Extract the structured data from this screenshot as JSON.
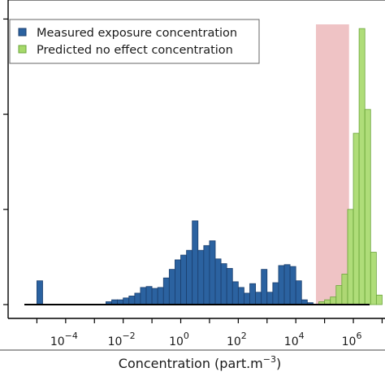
{
  "chart_data": {
    "type": "bar",
    "x_scale": "log10",
    "xlabel_main": "Concentration (part.m",
    "xlabel_sup": "−3",
    "xlabel_tail": ")",
    "x_ticks": [
      {
        "base": "10",
        "exp": "−4",
        "value": -4
      },
      {
        "base": "10",
        "exp": "−2",
        "value": -2
      },
      {
        "base": "10",
        "exp": "0",
        "value": 0
      },
      {
        "base": "10",
        "exp": "2",
        "value": 2
      },
      {
        "base": "10",
        "exp": "4",
        "value": 4
      },
      {
        "base": "10",
        "exp": "6",
        "value": 6
      }
    ],
    "xlim_log10": [
      -6.0,
      7.1
    ],
    "ylim": [
      0,
      320
    ],
    "y_tick_values": [
      0,
      100,
      200,
      300
    ],
    "bin_width_log10": 0.2,
    "grid": false,
    "legend_position": "top-left",
    "shaded_region_log10": [
      4.7,
      5.85
    ],
    "colors": {
      "measured_fill": "#2b62a0",
      "measured_edge": "#1b3f6e",
      "pnec_fill": "#a6d96a",
      "pnec_edge": "#6aa53a",
      "shade": "#efc3c5",
      "axis": "#000000"
    },
    "series": [
      {
        "name": "Measured exposure concentration",
        "color": "#2b62a0",
        "bins": [
          {
            "x": -5.0,
            "y": 25
          },
          {
            "x": -2.6,
            "y": 3
          },
          {
            "x": -2.4,
            "y": 5
          },
          {
            "x": -2.2,
            "y": 5
          },
          {
            "x": -2.0,
            "y": 7
          },
          {
            "x": -1.8,
            "y": 9
          },
          {
            "x": -1.6,
            "y": 12
          },
          {
            "x": -1.4,
            "y": 18
          },
          {
            "x": -1.2,
            "y": 19
          },
          {
            "x": -1.0,
            "y": 17
          },
          {
            "x": -0.8,
            "y": 18
          },
          {
            "x": -0.6,
            "y": 28
          },
          {
            "x": -0.4,
            "y": 37
          },
          {
            "x": -0.2,
            "y": 47
          },
          {
            "x": 0.0,
            "y": 52
          },
          {
            "x": 0.2,
            "y": 57
          },
          {
            "x": 0.4,
            "y": 88
          },
          {
            "x": 0.6,
            "y": 57
          },
          {
            "x": 0.8,
            "y": 62
          },
          {
            "x": 1.0,
            "y": 67
          },
          {
            "x": 1.2,
            "y": 48
          },
          {
            "x": 1.4,
            "y": 43
          },
          {
            "x": 1.6,
            "y": 38
          },
          {
            "x": 1.8,
            "y": 24
          },
          {
            "x": 2.0,
            "y": 18
          },
          {
            "x": 2.2,
            "y": 12
          },
          {
            "x": 2.4,
            "y": 22
          },
          {
            "x": 2.6,
            "y": 13
          },
          {
            "x": 2.8,
            "y": 37
          },
          {
            "x": 3.0,
            "y": 13
          },
          {
            "x": 3.2,
            "y": 23
          },
          {
            "x": 3.4,
            "y": 41
          },
          {
            "x": 3.6,
            "y": 42
          },
          {
            "x": 3.8,
            "y": 40
          },
          {
            "x": 4.0,
            "y": 25
          },
          {
            "x": 4.2,
            "y": 5
          },
          {
            "x": 4.4,
            "y": 2
          }
        ]
      },
      {
        "name": "Predicted no effect concentration",
        "color": "#a6d96a",
        "bins": [
          {
            "x": 4.8,
            "y": 3
          },
          {
            "x": 5.0,
            "y": 5
          },
          {
            "x": 5.2,
            "y": 8
          },
          {
            "x": 5.4,
            "y": 20
          },
          {
            "x": 5.6,
            "y": 32
          },
          {
            "x": 5.8,
            "y": 100
          },
          {
            "x": 6.0,
            "y": 180
          },
          {
            "x": 6.2,
            "y": 290
          },
          {
            "x": 6.4,
            "y": 205
          },
          {
            "x": 6.6,
            "y": 55
          },
          {
            "x": 6.8,
            "y": 10
          }
        ]
      }
    ]
  }
}
